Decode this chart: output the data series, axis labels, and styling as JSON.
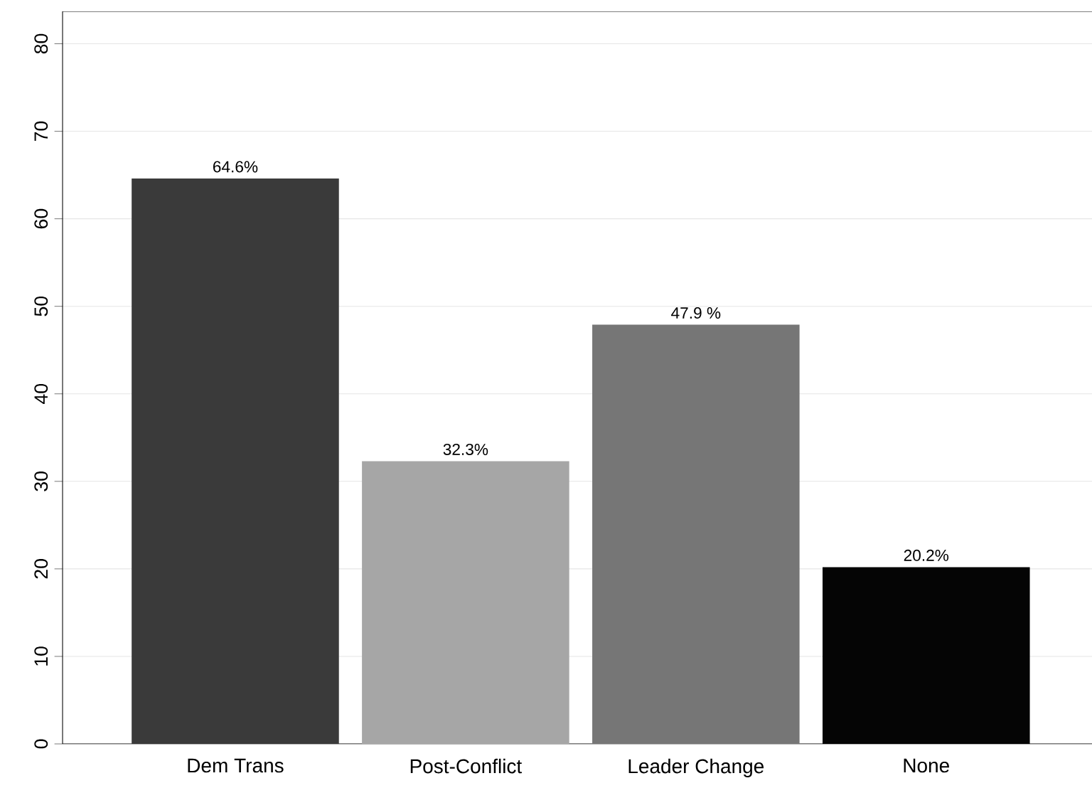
{
  "chart_data": {
    "type": "bar",
    "categories": [
      "Dem Trans",
      "Post-Conflict",
      "Leader Change",
      "None"
    ],
    "values": [
      64.6,
      32.3,
      47.9,
      20.2
    ],
    "colors": [
      "#3a3a3a",
      "#a6a6a6",
      "#767676",
      "#050505"
    ],
    "value_labels": [
      "64.6%",
      "32.3%",
      "47.9 %",
      "20.2%"
    ],
    "ylim": [
      0,
      83.7
    ],
    "yticks": [
      0,
      10,
      20,
      30,
      40,
      50,
      60,
      70,
      80
    ],
    "grid": "y"
  }
}
